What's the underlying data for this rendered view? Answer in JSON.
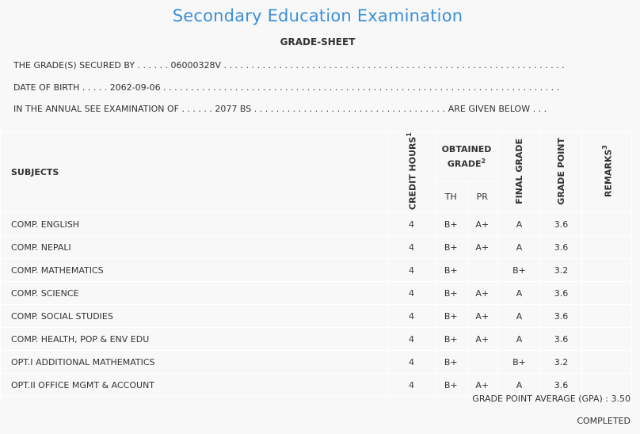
{
  "title": "Secondary Education Examination",
  "subtitle": "GRADE-SHEET",
  "info": {
    "secured_by_label": "THE GRADE(S) SECURED BY . . . . . .",
    "secured_by_value": "06000328V",
    "dob_label": "DATE OF BIRTH . . . . .",
    "dob_value": "2062-09-06",
    "exam_label": "IN THE ANNUAL SEE EXAMINATION OF . . . . . .",
    "exam_value": "2077 BS",
    "exam_suffix": "ARE GIVEN BELOW . . ."
  },
  "table": {
    "headers": {
      "subjects": "SUBJECTS",
      "credit_hours": "CREDIT HOURS",
      "credit_sup": "1",
      "obtained_grade": "OBTAINED GRADE",
      "obtained_sup": "2",
      "th": "TH",
      "pr": "PR",
      "final_grade": "FINAL GRADE",
      "grade_point": "GRADE POINT",
      "remarks": "REMARKS",
      "remarks_sup": "3"
    },
    "rows": [
      {
        "subject": "COMP. ENGLISH",
        "credit": "4",
        "th": "B+",
        "pr": "A+",
        "final": "A",
        "gp": "3.6",
        "remarks": ""
      },
      {
        "subject": "COMP. NEPALI",
        "credit": "4",
        "th": "B+",
        "pr": "A+",
        "final": "A",
        "gp": "3.6",
        "remarks": ""
      },
      {
        "subject": "COMP. MATHEMATICS",
        "credit": "4",
        "th": "B+",
        "pr": "",
        "final": "B+",
        "gp": "3.2",
        "remarks": ""
      },
      {
        "subject": "COMP. SCIENCE",
        "credit": "4",
        "th": "B+",
        "pr": "A+",
        "final": "A",
        "gp": "3.6",
        "remarks": ""
      },
      {
        "subject": "COMP. SOCIAL STUDIES",
        "credit": "4",
        "th": "B+",
        "pr": "A+",
        "final": "A",
        "gp": "3.6",
        "remarks": ""
      },
      {
        "subject": "COMP. HEALTH, POP & ENV EDU",
        "credit": "4",
        "th": "B+",
        "pr": "A+",
        "final": "A",
        "gp": "3.6",
        "remarks": ""
      },
      {
        "subject": "OPT.I ADDITIONAL MATHEMATICS",
        "credit": "4",
        "th": "B+",
        "pr": "",
        "final": "B+",
        "gp": "3.2",
        "remarks": ""
      },
      {
        "subject": "OPT.II OFFICE MGMT & ACCOUNT",
        "credit": "4",
        "th": "B+",
        "pr": "A+",
        "final": "A",
        "gp": "3.6",
        "remarks": ""
      }
    ]
  },
  "gpa": "GRADE POINT AVERAGE (GPA) : 3.50",
  "status": "COMPLETED"
}
